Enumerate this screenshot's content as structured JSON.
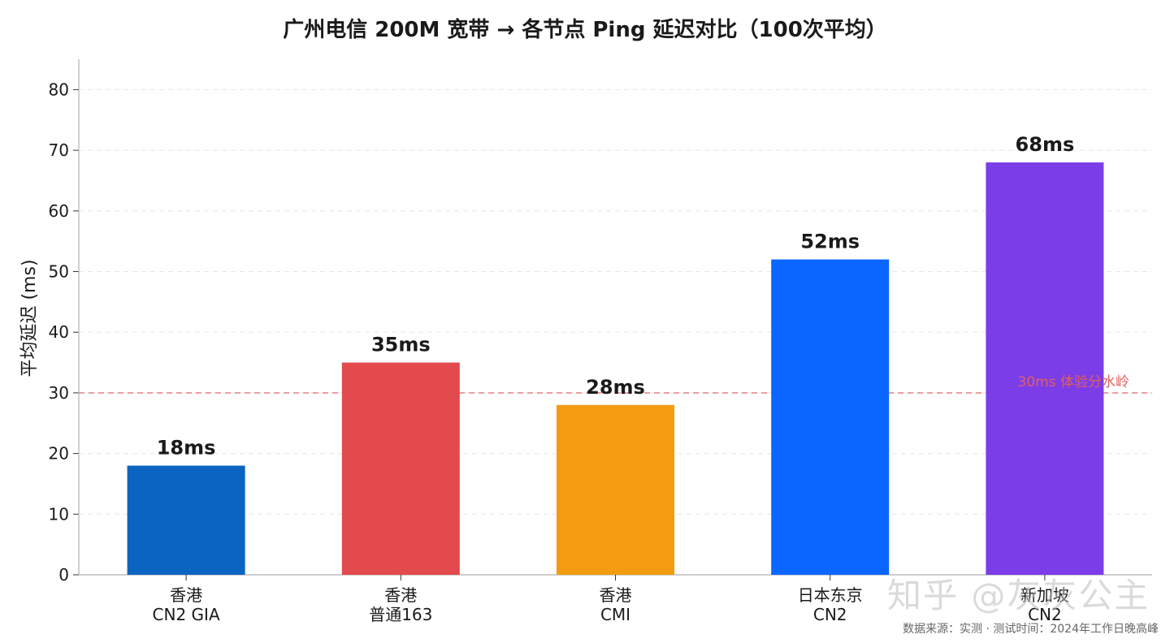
{
  "chart_data": {
    "type": "bar",
    "title": "广州电信 200M 宽带 → 各节点 Ping 延迟对比（100次平均）",
    "xlabel": "",
    "ylabel": "平均延迟 (ms)",
    "ylim": [
      0,
      85
    ],
    "yticks": [
      0,
      10,
      20,
      30,
      40,
      50,
      60,
      70,
      80
    ],
    "grid": true,
    "categories": [
      [
        "香港",
        "CN2 GIA"
      ],
      [
        "香港",
        "普通163"
      ],
      [
        "香港",
        "CMI"
      ],
      [
        "日本东京",
        "CN2"
      ],
      [
        "新加坡",
        "CN2"
      ]
    ],
    "values": [
      18,
      35,
      28,
      52,
      68
    ],
    "data_labels": [
      "18ms",
      "35ms",
      "28ms",
      "52ms",
      "68ms"
    ],
    "colors": [
      "#0a64c2",
      "#e24a4d",
      "#f39c12",
      "#0a66ff",
      "#7b3de8"
    ],
    "reference_line": {
      "value": 30,
      "label": "30ms 体验分水岭",
      "color": "#e88a8a"
    }
  },
  "source_note": "数据来源：实测 · 测试时间：2024年工作日晚高峰",
  "watermark": "知乎 @灰灰公主"
}
